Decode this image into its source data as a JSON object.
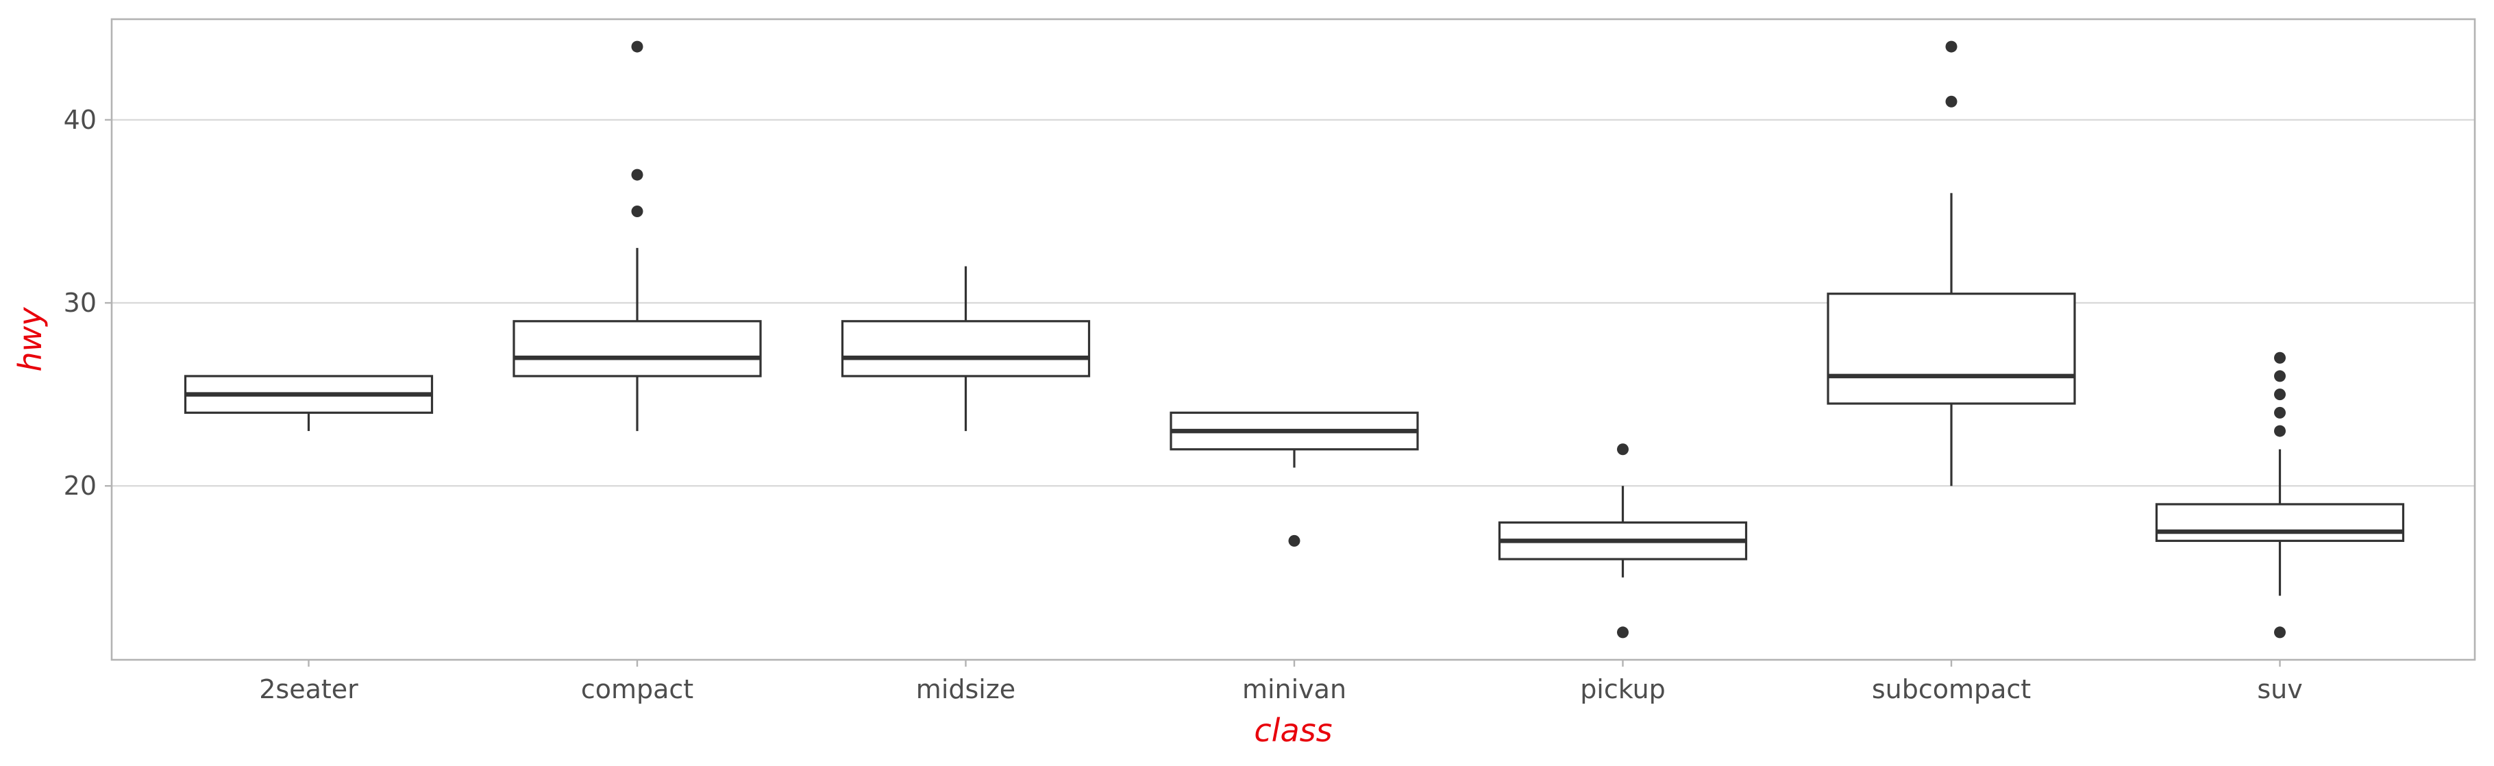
{
  "chart_data": {
    "type": "boxplot",
    "xlabel": "class",
    "ylabel": "hwy",
    "axis_title_color": "#e8000b",
    "ylim": [
      10.5,
      45.5
    ],
    "yticks": [
      20,
      30,
      40
    ],
    "grid": true,
    "categories": [
      "2seater",
      "compact",
      "midsize",
      "minivan",
      "pickup",
      "subcompact",
      "suv"
    ],
    "boxes": [
      {
        "category": "2seater",
        "whisker_low": 23,
        "q1": 24,
        "median": 25,
        "q3": 26,
        "whisker_high": 26,
        "outliers": []
      },
      {
        "category": "compact",
        "whisker_low": 23,
        "q1": 26,
        "median": 27,
        "q3": 29,
        "whisker_high": 33,
        "outliers": [
          35,
          37,
          44
        ]
      },
      {
        "category": "midsize",
        "whisker_low": 23,
        "q1": 26,
        "median": 27,
        "q3": 29,
        "whisker_high": 32,
        "outliers": []
      },
      {
        "category": "minivan",
        "whisker_low": 21,
        "q1": 22,
        "median": 23,
        "q3": 24,
        "whisker_high": 24,
        "outliers": [
          17
        ]
      },
      {
        "category": "pickup",
        "whisker_low": 15,
        "q1": 16,
        "median": 17,
        "q3": 18,
        "whisker_high": 20,
        "outliers": [
          12,
          22
        ]
      },
      {
        "category": "subcompact",
        "whisker_low": 20,
        "q1": 24.5,
        "median": 26,
        "q3": 30.5,
        "whisker_high": 36,
        "outliers": [
          41,
          44
        ]
      },
      {
        "category": "suv",
        "whisker_low": 14,
        "q1": 17,
        "median": 17.5,
        "q3": 19,
        "whisker_high": 22,
        "outliers": [
          12,
          23,
          24,
          25,
          26,
          27
        ]
      }
    ]
  }
}
